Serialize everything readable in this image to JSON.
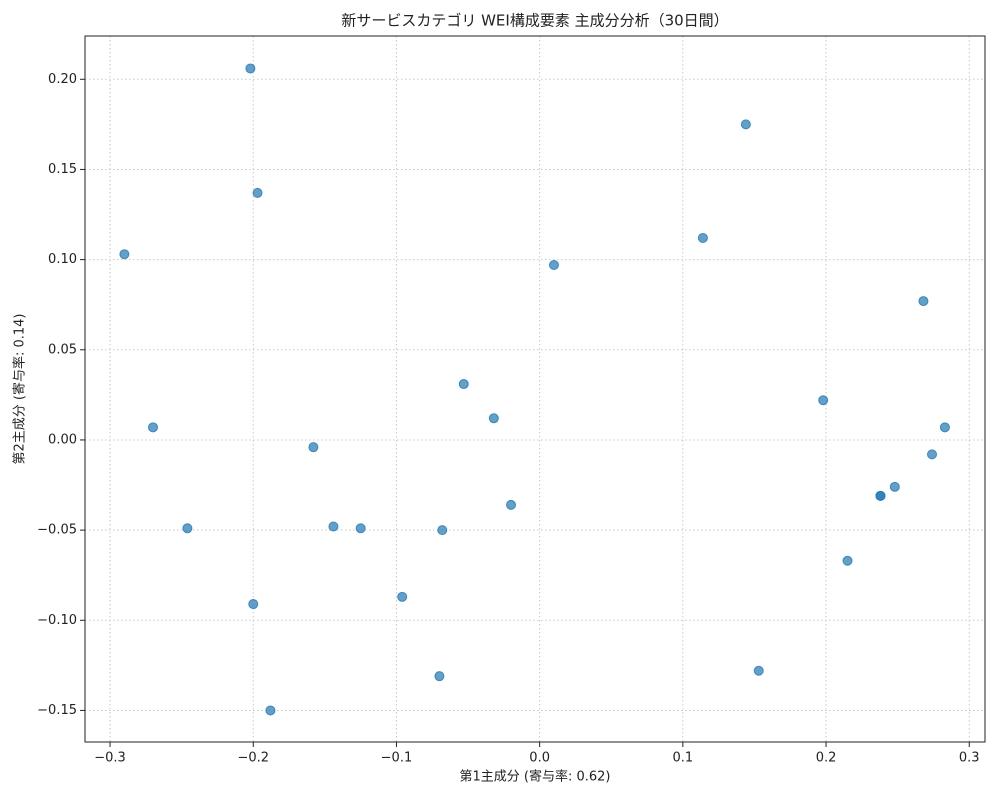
{
  "chart_data": {
    "type": "scatter",
    "title": "新サービスカテゴリ WEI構成要素 主成分分析（30日間）",
    "xlabel": "第1主成分 (寄与率: 0.62)",
    "ylabel": "第2主成分 (寄与率: 0.14)",
    "color": "#1f77b4",
    "grid": true,
    "x": [
      -0.202,
      -0.197,
      -0.29,
      -0.27,
      -0.246,
      -0.2,
      -0.188,
      -0.158,
      -0.144,
      -0.125,
      -0.096,
      -0.07,
      -0.068,
      -0.053,
      -0.032,
      -0.02,
      0.01,
      0.114,
      0.144,
      0.153,
      0.198,
      0.215,
      0.238,
      0.238,
      0.248,
      0.268,
      0.274,
      0.283
    ],
    "y": [
      0.206,
      0.137,
      0.103,
      0.007,
      -0.049,
      -0.091,
      -0.15,
      -0.004,
      -0.048,
      -0.049,
      -0.087,
      -0.131,
      -0.05,
      0.031,
      0.012,
      -0.036,
      0.097,
      0.112,
      0.175,
      -0.128,
      0.022,
      -0.067,
      -0.031,
      -0.031,
      -0.026,
      0.077,
      -0.008,
      0.007
    ],
    "xlim": [
      -0.3175,
      0.311
    ],
    "ylim": [
      -0.1675,
      0.224
    ],
    "xticks": [
      {
        "value": -0.3,
        "label": "−0.3"
      },
      {
        "value": -0.2,
        "label": "−0.2"
      },
      {
        "value": -0.1,
        "label": "−0.1"
      },
      {
        "value": 0,
        "label": "0.0"
      },
      0.1,
      0.2,
      0.3
    ],
    "yticks": [
      {
        "value": -0.15,
        "label": "−0.15"
      },
      {
        "value": -0.1,
        "label": "−0.10"
      },
      {
        "value": -0.05,
        "label": "−0.05"
      },
      {
        "value": 0,
        "label": "0.00"
      },
      0.05,
      {
        "value": 0.1,
        "label": "0.10"
      },
      0.15,
      {
        "value": 0.2,
        "label": "0.20"
      }
    ]
  }
}
